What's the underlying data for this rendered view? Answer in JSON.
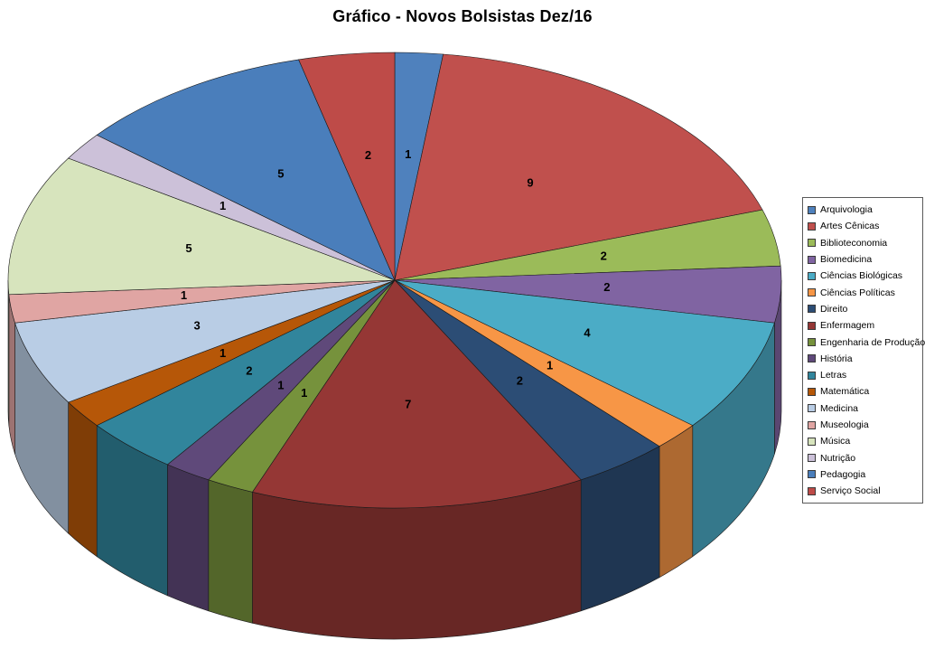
{
  "chart_data": {
    "type": "pie",
    "variant": "pie-3d",
    "title": "Gráfico - Novos Bolsistas Dez/16",
    "direction": "clockwise",
    "start_angle_deg": 0,
    "legend_position": "right",
    "data_labels": "values",
    "total": 50,
    "label_color": "#000000",
    "outline_color": "#1a1a1a",
    "series": [
      {
        "name": "Arquivologia",
        "value": 1,
        "color": "#4F81BD"
      },
      {
        "name": "Artes Cênicas",
        "value": 9,
        "color": "#C0504D"
      },
      {
        "name": "Biblioteconomia",
        "value": 2,
        "color": "#9BBB59"
      },
      {
        "name": "Biomedicina",
        "value": 2,
        "color": "#8064A2"
      },
      {
        "name": "Ciências Biológicas",
        "value": 4,
        "color": "#4BACC6"
      },
      {
        "name": "Ciências Políticas",
        "value": 1,
        "color": "#F79646"
      },
      {
        "name": "Direito",
        "value": 2,
        "color": "#2C4D75"
      },
      {
        "name": "Enfermagem",
        "value": 7,
        "color": "#953735"
      },
      {
        "name": "Engenharia de Produção",
        "value": 1,
        "color": "#76923C"
      },
      {
        "name": "História",
        "value": 1,
        "color": "#5F497A"
      },
      {
        "name": "Letras",
        "value": 2,
        "color": "#31859C"
      },
      {
        "name": "Matemática",
        "value": 1,
        "color": "#B65708"
      },
      {
        "name": "Medicina",
        "value": 3,
        "color": "#B9CDE5"
      },
      {
        "name": "Museologia",
        "value": 1,
        "color": "#E0A5A3"
      },
      {
        "name": "Música",
        "value": 5,
        "color": "#D7E4BD"
      },
      {
        "name": "Nutrição",
        "value": 1,
        "color": "#CCC1D9"
      },
      {
        "name": "Pedagogia",
        "value": 5,
        "color": "#4A7EBB"
      },
      {
        "name": "Serviço Social",
        "value": 2,
        "color": "#BE4B48"
      }
    ]
  }
}
